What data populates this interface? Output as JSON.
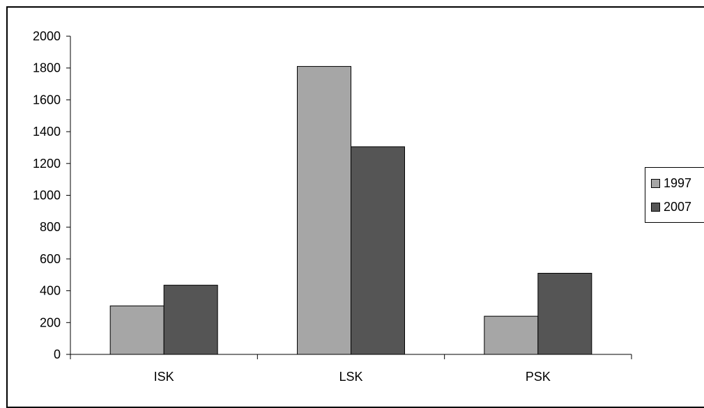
{
  "chart_data": {
    "type": "bar",
    "categories": [
      "ISK",
      "LSK",
      "PSK"
    ],
    "series": [
      {
        "name": "1997",
        "values": [
          305,
          1810,
          240
        ],
        "color": "#a6a6a6"
      },
      {
        "name": "2007",
        "values": [
          435,
          1305,
          510
        ],
        "color": "#555555"
      }
    ],
    "ylim": [
      0,
      2000
    ],
    "yticks": [
      0,
      200,
      400,
      600,
      800,
      1000,
      1200,
      1400,
      1600,
      1800,
      2000
    ],
    "grid": false,
    "legend_position": "right",
    "title": "",
    "xlabel": "",
    "ylabel": ""
  }
}
